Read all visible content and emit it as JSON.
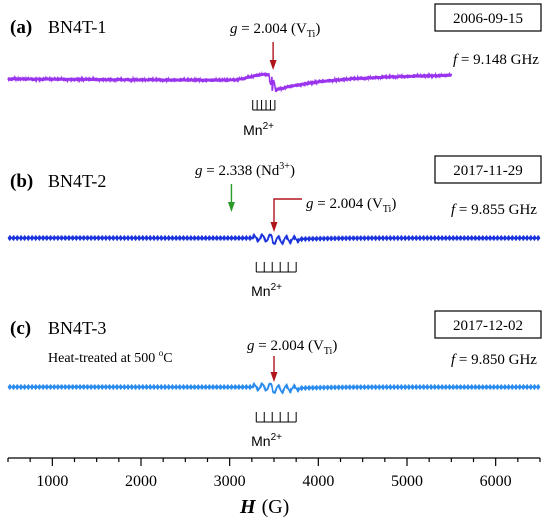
{
  "chart_data": {
    "type": "line",
    "xlabel": "H (G)",
    "xlim": [
      500,
      6500
    ],
    "x_ticks": [
      "1000",
      "2000",
      "3000",
      "4000",
      "5000",
      "6000"
    ],
    "mn_label": "Mn2+",
    "accent_colors": {
      "vti_arrow": "#b0151e",
      "nd_arrow": "#2a9a2a"
    },
    "panels": [
      {
        "panel_label": "(a)",
        "sample": "BN4T-1",
        "date": "2006-09-15",
        "frequency": "f = 9.148 GHz",
        "note": "",
        "color": "#9933ee",
        "x_range": [
          500,
          5500
        ],
        "mn_center": 3400,
        "mn_lines": [
          3260,
          3310,
          3360,
          3410,
          3460,
          3510
        ],
        "annotations": [
          {
            "label": "g = 2.004 (VTi)",
            "x": 3490,
            "color": "#b0151e"
          }
        ]
      },
      {
        "panel_label": "(b)",
        "sample": "BN4T-2",
        "date": "2017-11-29",
        "frequency": "f = 9.855 GHz",
        "note": "",
        "color": "#1a33dd",
        "x_range": [
          500,
          6500
        ],
        "mn_center": 3490,
        "mn_lines": [
          3300,
          3390,
          3480,
          3570,
          3660,
          3750
        ],
        "annotations": [
          {
            "label": "g = 2.338 (Nd3+)",
            "x": 3020,
            "color": "#2a9a2a"
          },
          {
            "label": "g = 2.004 (VTi)",
            "x": 3500,
            "color": "#b0151e"
          }
        ]
      },
      {
        "panel_label": "(c)",
        "sample": "BN4T-3",
        "date": "2017-12-02",
        "frequency": "f = 9.850 GHz",
        "note": "Heat-treated at 500 oC",
        "color": "#2b8cee",
        "x_range": [
          500,
          6500
        ],
        "mn_center": 3490,
        "mn_lines": [
          3300,
          3390,
          3480,
          3570,
          3660,
          3750
        ],
        "annotations": [
          {
            "label": "g = 2.004 (VTi)",
            "x": 3500,
            "color": "#b0151e"
          }
        ]
      }
    ]
  }
}
